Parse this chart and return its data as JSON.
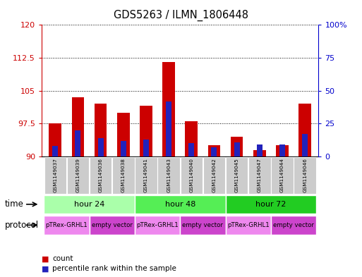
{
  "title": "GDS5263 / ILMN_1806448",
  "samples": [
    "GSM1149037",
    "GSM1149039",
    "GSM1149036",
    "GSM1149038",
    "GSM1149041",
    "GSM1149043",
    "GSM1149040",
    "GSM1149042",
    "GSM1149045",
    "GSM1149047",
    "GSM1149044",
    "GSM1149046"
  ],
  "bar_bottom": 90,
  "red_tops": [
    97.5,
    103.5,
    102.0,
    100.0,
    101.5,
    111.5,
    98.0,
    92.5,
    94.5,
    91.5,
    92.5,
    102.0
  ],
  "blue_pcts": [
    8.0,
    20.0,
    14.0,
    12.0,
    13.0,
    42.0,
    10.0,
    7.0,
    11.0,
    9.0,
    9.0,
    17.0
  ],
  "ylim_left": [
    90,
    120
  ],
  "ylim_right": [
    0,
    100
  ],
  "yticks_left": [
    90,
    97.5,
    105,
    112.5,
    120
  ],
  "yticks_right": [
    0,
    25,
    50,
    75,
    100
  ],
  "ytick_labels_left": [
    "90",
    "97.5",
    "105",
    "112.5",
    "120"
  ],
  "ytick_labels_right": [
    "0",
    "25",
    "50",
    "75",
    "100%"
  ],
  "bar_color_red": "#cc0000",
  "bar_color_blue": "#2222bb",
  "bar_width": 0.55,
  "blue_bar_width": 0.25,
  "time_colors": [
    "#aaffaa",
    "#55ee55",
    "#22cc22"
  ],
  "time_groups": [
    {
      "label": "hour 24",
      "start": 0,
      "end": 4
    },
    {
      "label": "hour 48",
      "start": 4,
      "end": 8
    },
    {
      "label": "hour 72",
      "start": 8,
      "end": 12
    }
  ],
  "protocol_groups": [
    {
      "label": "pTRex-GRHL1",
      "start": 0,
      "end": 2
    },
    {
      "label": "empty vector",
      "start": 2,
      "end": 4
    },
    {
      "label": "pTRex-GRHL1",
      "start": 4,
      "end": 6
    },
    {
      "label": "empty vector",
      "start": 6,
      "end": 8
    },
    {
      "label": "pTRex-GRHL1",
      "start": 8,
      "end": 10
    },
    {
      "label": "empty vector",
      "start": 10,
      "end": 12
    }
  ],
  "protocol_colors": [
    "#ee88ee",
    "#cc44cc"
  ],
  "bg_color": "#ffffff",
  "sample_bg_color": "#cccccc",
  "left_tick_color": "#cc0000",
  "right_tick_color": "#0000cc"
}
